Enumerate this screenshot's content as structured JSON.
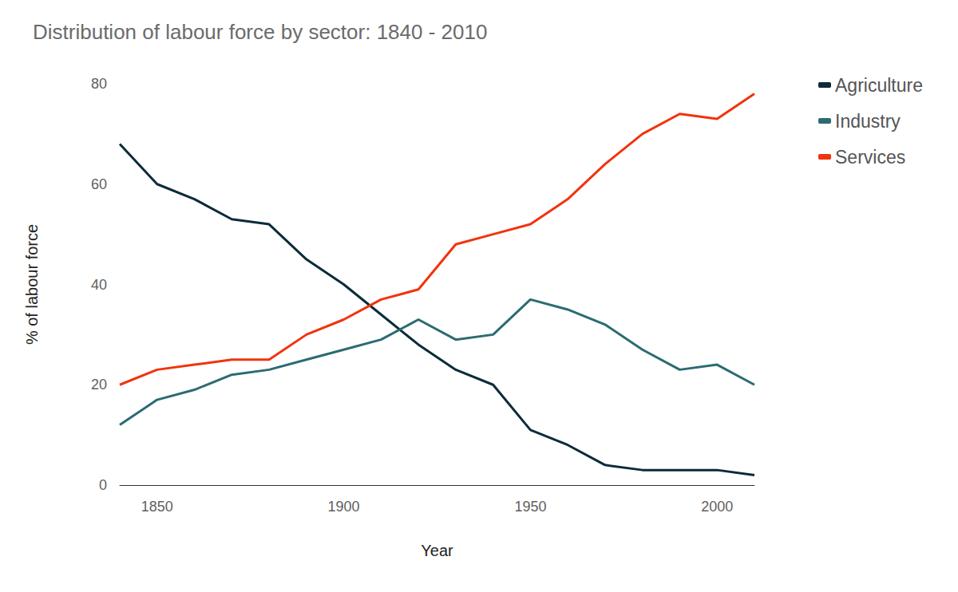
{
  "chart_data": {
    "type": "line",
    "title": "Distribution of labour force by sector: 1840 - 2010",
    "x_label": "Year",
    "y_label": "% of labour force",
    "x": [
      1840,
      1850,
      1860,
      1870,
      1880,
      1890,
      1900,
      1910,
      1920,
      1930,
      1940,
      1950,
      1960,
      1970,
      1980,
      1990,
      2000,
      2010
    ],
    "series": [
      {
        "name": "Agriculture",
        "color": "#0b2b3a",
        "values": [
          68,
          60,
          57,
          53,
          52,
          45,
          40,
          34,
          28,
          23,
          20,
          11,
          8,
          4,
          3,
          3,
          3,
          2
        ]
      },
      {
        "name": "Industry",
        "color": "#2b6b72",
        "values": [
          12,
          17,
          19,
          22,
          23,
          25,
          27,
          29,
          33,
          29,
          30,
          37,
          35,
          32,
          27,
          23,
          24,
          20
        ]
      },
      {
        "name": "Services",
        "color": "#f2330d",
        "values": [
          20,
          23,
          24,
          25,
          25,
          30,
          33,
          37,
          39,
          48,
          50,
          52,
          57,
          64,
          70,
          74,
          73,
          78
        ]
      }
    ],
    "xlim": [
      1840,
      2010
    ],
    "xticks": [
      1850,
      1900,
      1950,
      2000
    ],
    "ylim": [
      0,
      80
    ],
    "yticks": [
      0,
      20,
      40,
      60,
      80
    ],
    "grid": false,
    "legend": "top right"
  }
}
